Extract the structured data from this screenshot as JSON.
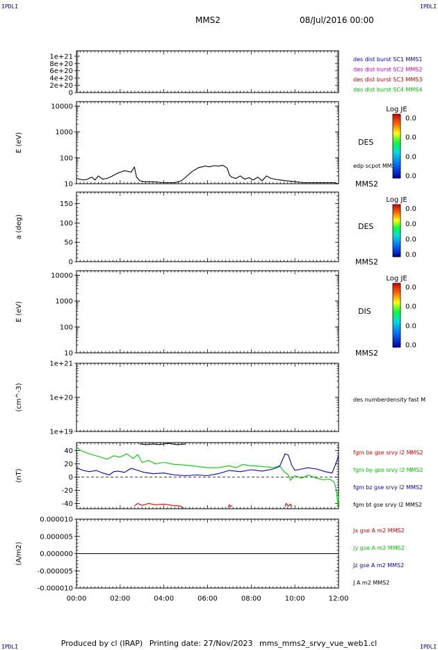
{
  "corner_labels": {
    "top_left": "IPDLI",
    "top_right": "IPDLI",
    "bottom_left": "IPDLI",
    "bottom_right": "IPDLI"
  },
  "header": {
    "spacecraft": "MMS2",
    "datetime": "08/Jul/2016 00:00"
  },
  "footer": {
    "produced_by": "Produced by cl (IRAP)",
    "printing_date": "Printing date: 27/Nov/2023",
    "script": "mms_mms2_srvy_vue_web1.cl"
  },
  "chart_data": [
    {
      "type": "line",
      "panel": "distribution",
      "ylabel": "",
      "ylim": [
        0,
        1.15e+21
      ],
      "yticks": [
        {
          "v": 0,
          "label": "0"
        },
        {
          "v": 2e+20,
          "label": "2e+20"
        },
        {
          "v": 4e+20,
          "label": "4e+20"
        },
        {
          "v": 6e+20,
          "label": "6e+20"
        },
        {
          "v": 8e+20,
          "label": "8e+20"
        },
        {
          "v": 1e+21,
          "label": "1e+21"
        }
      ],
      "dashed_zero": true,
      "legend": [
        {
          "text": "des dist burst SC1 MMS1",
          "color": "#0000cc"
        },
        {
          "text": "des dist burst SC2 MMS2",
          "color": "#cc00cc"
        },
        {
          "text": "des dist burst SC3 MMS3",
          "color": "#cc0000"
        },
        {
          "text": "des dist burst SC4 MMS4",
          "color": "#00bb00"
        }
      ]
    },
    {
      "type": "line",
      "panel": "des-energy",
      "ylabel": "E (eV)",
      "ylog": true,
      "ylim": [
        10,
        15000
      ],
      "yticks": [
        {
          "v": 10,
          "label": "10"
        },
        {
          "v": 100,
          "label": "100"
        },
        {
          "v": 1000,
          "label": "1000"
        },
        {
          "v": 10000,
          "label": "10000"
        }
      ],
      "side_label": "DES",
      "sub_label": "MMS2",
      "inline_label": "edp scpot MMS2",
      "colorbar": {
        "title": "Log JE",
        "ticks": [
          "0.0",
          "0.0",
          "0.0",
          "0.0"
        ]
      },
      "series": [
        {
          "name": "edp scpot MMS2",
          "color": "#000000",
          "x": [
            0.0,
            0.3,
            0.5,
            0.7,
            0.85,
            1.0,
            1.2,
            1.4,
            1.6,
            1.9,
            2.2,
            2.5,
            2.65,
            2.75,
            2.9,
            3.1,
            3.5,
            4.0,
            4.5,
            4.8,
            5.0,
            5.3,
            5.6,
            5.9,
            6.1,
            6.3,
            6.5,
            6.7,
            6.9,
            7.0,
            7.1,
            7.3,
            7.5,
            7.7,
            7.9,
            8.1,
            8.3,
            8.5,
            8.7,
            8.9,
            9.1,
            9.3,
            9.6,
            10.0,
            10.4,
            10.8,
            11.2,
            11.5,
            11.8,
            12.0
          ],
          "y": [
            16,
            14,
            15,
            18,
            14,
            20,
            15,
            16,
            19,
            26,
            32,
            28,
            44,
            18,
            13,
            12,
            12,
            11,
            11,
            13,
            18,
            30,
            42,
            48,
            45,
            50,
            48,
            52,
            40,
            22,
            18,
            16,
            20,
            15,
            17,
            14,
            18,
            13,
            20,
            16,
            15,
            14,
            13,
            12,
            11,
            11,
            11,
            11,
            11,
            10
          ]
        }
      ]
    },
    {
      "type": "line",
      "panel": "pitch-angle",
      "ylabel": "a (deg)",
      "ylim": [
        0,
        180
      ],
      "yticks": [
        {
          "v": 0,
          "label": "0"
        },
        {
          "v": 50,
          "label": "50"
        },
        {
          "v": 100,
          "label": "100"
        },
        {
          "v": 150,
          "label": "150"
        }
      ],
      "side_label": "DES",
      "sub_label": "MMS2",
      "colorbar": {
        "title": "Log JE",
        "ticks": [
          "0.0",
          "0.0",
          "0.0",
          "0.0"
        ]
      }
    },
    {
      "type": "line",
      "panel": "dis-energy",
      "ylabel": "E (eV)",
      "ylog": true,
      "ylim": [
        10,
        15000
      ],
      "yticks": [
        {
          "v": 10,
          "label": "10"
        },
        {
          "v": 100,
          "label": "100"
        },
        {
          "v": 1000,
          "label": "1000"
        },
        {
          "v": 10000,
          "label": "10000"
        }
      ],
      "side_label": "DIS",
      "sub_label": "MMS2",
      "colorbar": {
        "title": "Log JE",
        "ticks": [
          "0.0",
          "0.0",
          "0.0",
          "0.0"
        ]
      }
    },
    {
      "type": "line",
      "panel": "density",
      "ylabel": "(cm^-3)",
      "ylog": true,
      "ylim": [
        1e+19,
        1e+21
      ],
      "yticks": [
        {
          "v": 1e+19,
          "label": "1e+19"
        },
        {
          "v": 1e+20,
          "label": "1e+20"
        },
        {
          "v": 1e+21,
          "label": "1e+21"
        }
      ],
      "inline_label": "des numberdensity fast M"
    },
    {
      "type": "line",
      "panel": "magnetic-field",
      "ylabel": "(nT)",
      "ylim": [
        -48,
        52
      ],
      "yticks": [
        {
          "v": -40,
          "label": "-40"
        },
        {
          "v": -20,
          "label": "-20"
        },
        {
          "v": 0,
          "label": "0"
        },
        {
          "v": 20,
          "label": "20"
        },
        {
          "v": 40,
          "label": "40"
        }
      ],
      "dashed_zero": true,
      "series": [
        {
          "name": "fgm bx gse srvy l2 MMS2",
          "color": "#dd0000",
          "segments": [
            {
              "x": [
                2.65,
                2.8,
                3.0,
                3.3,
                3.6,
                4.0,
                4.4,
                4.75,
                4.9
              ],
              "y": [
                -44,
                -40,
                -43,
                -40,
                -42,
                -41,
                -43,
                -44,
                -47
              ]
            },
            {
              "x": [
                6.95,
                7.0,
                7.05,
                7.12
              ],
              "y": [
                -46,
                -42,
                -45,
                -43
              ]
            },
            {
              "x": [
                9.55,
                9.6,
                9.7,
                9.8,
                9.85
              ],
              "y": [
                -45,
                -40,
                -44,
                -41,
                -45
              ]
            }
          ]
        },
        {
          "name": "fgm by gse srvy l2 MMS2",
          "color": "#00cc00",
          "x": [
            0.0,
            0.2,
            0.5,
            0.8,
            1.1,
            1.4,
            1.7,
            2.0,
            2.3,
            2.6,
            2.8,
            3.0,
            3.3,
            3.6,
            4.0,
            4.5,
            5.0,
            5.5,
            6.0,
            6.5,
            7.0,
            7.3,
            7.6,
            8.0,
            8.5,
            9.0,
            9.3,
            9.5,
            9.7,
            9.8,
            10.0,
            10.3,
            10.6,
            11.0,
            11.3,
            11.6,
            11.8,
            11.9,
            11.97,
            12.0
          ],
          "y": [
            45,
            40,
            36,
            33,
            30,
            27,
            32,
            30,
            35,
            28,
            34,
            22,
            25,
            20,
            22,
            19,
            18,
            16,
            14,
            14,
            17,
            14,
            19,
            17,
            16,
            14,
            17,
            8,
            3,
            -5,
            2,
            -2,
            3,
            -2,
            -4,
            -3,
            -8,
            -20,
            -45,
            -30
          ]
        },
        {
          "name": "fgm bz gse srvy l2 MMS2",
          "color": "#0000cc",
          "x": [
            0.0,
            0.3,
            0.6,
            0.9,
            1.2,
            1.5,
            1.7,
            1.9,
            2.2,
            2.5,
            2.8,
            3.1,
            3.5,
            4.0,
            4.5,
            5.0,
            5.5,
            6.0,
            6.5,
            7.0,
            7.5,
            8.0,
            8.5,
            9.0,
            9.3,
            9.55,
            9.7,
            9.85,
            10.0,
            10.3,
            10.6,
            11.0,
            11.4,
            11.7,
            11.85,
            12.0
          ],
          "y": [
            14,
            10,
            8,
            10,
            6,
            3,
            8,
            9,
            7,
            13,
            10,
            7,
            5,
            6,
            3,
            2,
            3,
            2,
            5,
            10,
            8,
            11,
            9,
            12,
            16,
            35,
            33,
            18,
            10,
            12,
            14,
            12,
            8,
            6,
            18,
            32
          ]
        },
        {
          "name": "fgm bt gse srvy l2 MMS2",
          "color": "#000000",
          "segments": [
            {
              "x": [
                2.9,
                3.2,
                3.5,
                3.8,
                4.2,
                4.6,
                5.0
              ],
              "y": [
                50,
                49,
                50,
                49,
                51,
                49,
                50
              ]
            }
          ]
        }
      ]
    },
    {
      "type": "line",
      "panel": "current-density",
      "ylabel": "(A/m2)",
      "ylim": [
        -1e-05,
        1e-05
      ],
      "yticks": [
        {
          "v": -1e-05,
          "label": "-0.000010"
        },
        {
          "v": -5e-06,
          "label": "-0.000005"
        },
        {
          "v": 0,
          "label": "0.000000"
        },
        {
          "v": 5e-06,
          "label": "0.000005"
        },
        {
          "v": 1e-05,
          "label": "0.000010"
        }
      ],
      "xticks": [
        "00:00",
        "02:00",
        "04:00",
        "06:00",
        "08:00",
        "10:00",
        "12:00"
      ],
      "xlim": [
        0,
        12
      ],
      "series": [
        {
          "name": "Jx gse A m2 MMS2",
          "color": "#dd0000",
          "x": [
            0,
            12
          ],
          "y": [
            0,
            0
          ]
        },
        {
          "name": "Jy gse A m2 MMS2",
          "color": "#00cc00",
          "x": [
            0,
            12
          ],
          "y": [
            0,
            0
          ]
        },
        {
          "name": "Jz gse A m2 MMS2",
          "color": "#0000cc",
          "x": [
            0,
            12
          ],
          "y": [
            0,
            0
          ]
        },
        {
          "name": "J A m2 MMS2",
          "color": "#000000",
          "x": [
            0,
            12
          ],
          "y": [
            0,
            0
          ]
        }
      ]
    }
  ]
}
